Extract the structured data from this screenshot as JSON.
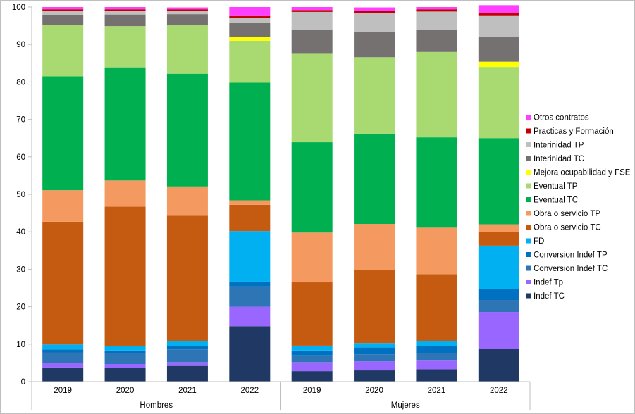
{
  "chart_data": {
    "type": "stacked-bar-100",
    "title": "",
    "ylim": [
      0,
      100
    ],
    "yticks": [
      0,
      10,
      20,
      30,
      40,
      50,
      60,
      70,
      80,
      90,
      100
    ],
    "groups": [
      {
        "name": "Hombres",
        "years": [
          "2019",
          "2020",
          "2021",
          "2022"
        ]
      },
      {
        "name": "Mujeres",
        "years": [
          "2019",
          "2020",
          "2021",
          "2022"
        ]
      }
    ],
    "series": [
      {
        "name": "Indef TC",
        "color": "#1f3864",
        "values": [
          3.8,
          3.7,
          4.2,
          14.8,
          2.8,
          3.0,
          3.3,
          8.8
        ]
      },
      {
        "name": "Indef Tp",
        "color": "#9966ff",
        "values": [
          1.2,
          1.0,
          1.0,
          5.2,
          2.4,
          2.4,
          2.3,
          9.8
        ]
      },
      {
        "name": "Conversion Indef TC",
        "color": "#2e75b6",
        "values": [
          2.8,
          3.0,
          3.4,
          5.4,
          1.8,
          1.9,
          2.1,
          3.2
        ]
      },
      {
        "name": "Conversion Indef TP",
        "color": "#0070c0",
        "values": [
          0.8,
          0.6,
          0.9,
          1.3,
          1.3,
          1.8,
          1.8,
          3.0
        ]
      },
      {
        "name": "FD",
        "color": "#00b0f0",
        "values": [
          1.3,
          1.1,
          1.4,
          13.5,
          1.3,
          1.2,
          1.4,
          11.5
        ]
      },
      {
        "name": "Obra o servicio TC",
        "color": "#c55a11",
        "values": [
          32.8,
          37.3,
          33.4,
          7.0,
          16.9,
          19.4,
          17.8,
          3.7
        ]
      },
      {
        "name": "Obra o servicio TP",
        "color": "#f4995f",
        "values": [
          8.4,
          7.0,
          7.8,
          1.2,
          13.3,
          12.4,
          12.4,
          2.0
        ]
      },
      {
        "name": "Eventual TC",
        "color": "#00b050",
        "values": [
          30.4,
          30.2,
          30.1,
          31.4,
          24.1,
          24.1,
          24.1,
          23.0
        ]
      },
      {
        "name": "Eventual TP",
        "color": "#a9d971",
        "values": [
          13.7,
          11.0,
          12.9,
          11.2,
          23.8,
          20.4,
          22.8,
          19.0
        ]
      },
      {
        "name": "Mejora ocupabilidad y FSE",
        "color": "#ffff00",
        "values": [
          0.0,
          0.0,
          0.0,
          1.0,
          0.0,
          0.0,
          0.0,
          1.4
        ]
      },
      {
        "name": "Interinidad TC",
        "color": "#767171",
        "values": [
          2.7,
          3.1,
          3.0,
          3.8,
          6.2,
          6.8,
          5.9,
          6.6
        ]
      },
      {
        "name": "Interinidad TP",
        "color": "#bfbfbf",
        "values": [
          1.0,
          0.9,
          0.8,
          1.2,
          4.8,
          5.0,
          4.9,
          5.6
        ]
      },
      {
        "name": "Practicas y Formación",
        "color": "#c00000",
        "values": [
          0.5,
          0.5,
          0.5,
          0.6,
          0.5,
          0.6,
          0.6,
          0.8
        ]
      },
      {
        "name": "Otros contratos",
        "color": "#ff3fff",
        "values": [
          0.6,
          0.6,
          0.5,
          2.4,
          0.8,
          0.9,
          0.6,
          2.1
        ]
      }
    ],
    "legend_position": "right",
    "grid": false
  }
}
